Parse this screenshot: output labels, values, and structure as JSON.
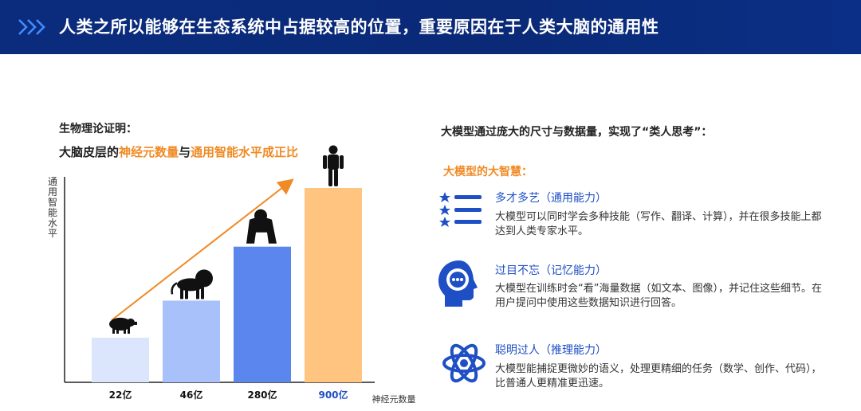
{
  "header": {
    "title": "人类之所以能够在生态系统中占据较高的位置，重要原因在于人类大脑的通用性"
  },
  "left": {
    "subtitle1": "生物理论证明：",
    "subtitle2_prefix": "大脑皮层的",
    "subtitle2_em1": "神经元数量",
    "subtitle2_mid": "与",
    "subtitle2_em2": "通用智能水平成正比",
    "subtitle2_suffix": ""
  },
  "chart_data": {
    "type": "bar",
    "categories": [
      "22亿",
      "46亿",
      "280亿",
      "900亿"
    ],
    "values": [
      22,
      46,
      280,
      900
    ],
    "animals": [
      "pig-icon",
      "lion-icon",
      "gorilla-icon",
      "human-icon"
    ],
    "colors": [
      "#dbe6fd",
      "#a9c1fb",
      "#5b86ee",
      "#ffc47f"
    ],
    "xlabel": "神经元数量",
    "ylabel": "通用智能水平",
    "highlight_color": "#1f4fc4",
    "arrow_color": "#f08a24"
  },
  "right": {
    "title": "大模型通过庞大的尺寸与数据量，实现了“类人思考”：",
    "subtitle": "大模型的大智慧：",
    "features": [
      {
        "icon": "star-list-icon",
        "title": "多才多艺（通用能力）",
        "desc": "大模型可以同时学会多种技能（写作、翻译、计算），并在很多技能上都达到人类专家水平。"
      },
      {
        "icon": "memory-head-icon",
        "title": "过目不忘（记忆能力）",
        "desc": "大模型在训练时会“看”海量数据（如文本、图像），并记住这些细节。在用户提问中使用这些数据知识进行回答。"
      },
      {
        "icon": "atom-icon",
        "title": "聪明过人（推理能力）",
        "desc": "大模型能捕捉更微妙的语义，处理更精细的任务（数学、创作、代码），比普通人更精准更迅速。"
      }
    ]
  },
  "colors": {
    "header_bg": "#0b2c7d",
    "accent_blue": "#1f4fc4",
    "accent_orange": "#f08a24"
  }
}
